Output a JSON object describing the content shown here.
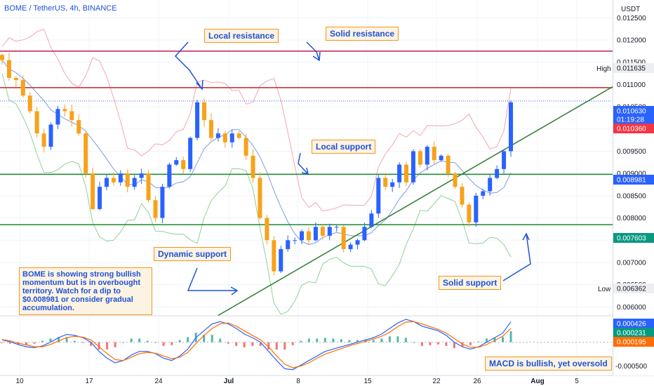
{
  "header": {
    "symbol": "BOME / TetherUS, 4h, BINANCE",
    "currency": "USDT"
  },
  "price_axis": {
    "ticks": [
      "0.012500",
      "0.012000",
      "0.011500",
      "0.011000",
      "0.010500",
      "0.010000",
      "0.009500",
      "0.009000",
      "0.008500",
      "0.008000",
      "0.007500",
      "0.007000",
      "0.006500",
      "0.006000"
    ],
    "tick_values": [
      0.0125,
      0.012,
      0.0115,
      0.011,
      0.0105,
      0.01,
      0.0095,
      0.009,
      0.0085,
      0.008,
      0.0075,
      0.007,
      0.0065,
      0.006
    ],
    "high_label": "High",
    "high_value": "0.011635",
    "low_label": "Low",
    "low_value": "0.006362",
    "last_price": "0.010630",
    "countdown": "01:19:28",
    "red_tag": "0.010360",
    "support_tag": "0.008981",
    "green_tag": "0.007603",
    "colors": {
      "last": "#2962ff",
      "red": "#f23645",
      "green": "#089981"
    }
  },
  "macd_axis": {
    "ticks": [
      "-0.000500"
    ],
    "tags": [
      {
        "value": "0.000426",
        "color": "#2962ff"
      },
      {
        "value": "0.000231",
        "color": "#089981"
      },
      {
        "value": "0.000195",
        "color": "#ff6d00"
      }
    ]
  },
  "time_axis": {
    "labels": [
      "10",
      "17",
      "24",
      "Jul",
      "8",
      "15",
      "22",
      "26",
      "Aug",
      "5"
    ]
  },
  "annotations": {
    "local_resistance": "Local resistance",
    "solid_resistance": "Solid resistance",
    "local_support": "Local support",
    "dynamic_support": "Dynamic support",
    "solid_support": "Solid support",
    "commentary": "BOME is showing strong bullish momentum but is in overbought territory. Watch for a dip to $0.008981 or consider gradual accumulation.",
    "macd_note": "MACD is bullish, yet oversold"
  },
  "chart_data": {
    "type": "candlestick",
    "title": "BOME / TetherUS, 4h, BINANCE",
    "xlabel": "",
    "ylabel": "",
    "ylim": [
      0.0058,
      0.0129
    ],
    "horizontal_levels": [
      {
        "price": 0.01175,
        "color": "#c2185b"
      },
      {
        "price": 0.01093,
        "color": "#c62828"
      },
      {
        "price": 0.008981,
        "color": "#1b8a2b"
      },
      {
        "price": 0.00785,
        "color": "#1b8a2b"
      }
    ],
    "trendline": {
      "from": [
        0,
        0.0058
      ],
      "to": [
        1,
        0.01095
      ],
      "color": "#2e7d32"
    },
    "close_path": [
      0.01155,
      0.01115,
      0.0111,
      0.01075,
      0.0104,
      0.0099,
      0.0096,
      0.0101,
      0.01045,
      0.0104,
      0.0102,
      0.0099,
      0.009,
      0.0082,
      0.0087,
      0.0089,
      0.0088,
      0.009,
      0.0087,
      0.0089,
      0.009,
      0.0084,
      0.008,
      0.0087,
      0.0092,
      0.0093,
      0.0091,
      0.0098,
      0.0106,
      0.0102,
      0.0098,
      0.0099,
      0.0097,
      0.0099,
      0.0098,
      0.0094,
      0.0089,
      0.008,
      0.0075,
      0.0068,
      0.0073,
      0.0075,
      0.0075,
      0.0077,
      0.0075,
      0.0078,
      0.0076,
      0.0078,
      0.0078,
      0.0073,
      0.0074,
      0.0075,
      0.0078,
      0.0081,
      0.0089,
      0.0087,
      0.0088,
      0.0092,
      0.0088,
      0.0095,
      0.0092,
      0.0096,
      0.0093,
      0.0094,
      0.009,
      0.0087,
      0.0083,
      0.0079,
      0.0085,
      0.0086,
      0.0089,
      0.0091,
      0.0095,
      0.0106
    ]
  },
  "macd_data": {
    "macd": [
      5e-05,
      1e-05,
      -5e-05,
      -0.0001,
      -0.00012,
      -8e-05,
      0.0,
      0.0001,
      0.00017,
      0.00015,
      0.0001,
      0.0,
      -0.0002,
      -0.00035,
      -0.00045,
      -0.0004,
      -0.00028,
      -0.0002,
      -0.0002,
      -0.00025,
      -0.00035,
      -0.0004,
      -0.0003,
      -0.00015,
      0.0001,
      0.00025,
      0.0004,
      0.00045,
      0.0004,
      0.0003,
      0.00018,
      0.0001,
      0.0,
      -0.0002,
      -0.0004,
      -0.00058,
      -0.0006,
      -0.0005,
      -0.0004,
      -0.0003,
      -0.0002,
      -0.00015,
      -0.0001,
      -5e-05,
      0.0,
      5e-05,
      0.0001,
      0.00018,
      0.0003,
      0.00042,
      0.0005,
      0.00045,
      0.00035,
      0.0003,
      0.00025,
      0.00015,
      0.0,
      -0.0001,
      -0.00015,
      -0.0001,
      0.0,
      0.0001,
      0.0002,
      0.00045
    ],
    "signal": [
      6e-05,
      3e-05,
      -2e-05,
      -6e-05,
      -0.0001,
      -0.0001,
      -5e-05,
      3e-05,
      0.0001,
      0.00013,
      0.00011,
      5e-05,
      -0.0001,
      -0.00025,
      -0.00038,
      -0.0004,
      -0.00033,
      -0.00025,
      -0.00022,
      -0.00024,
      -0.0003,
      -0.00036,
      -0.00033,
      -0.00022,
      -3e-05,
      0.00015,
      0.0003,
      0.0004,
      0.00042,
      0.00035,
      0.00025,
      0.00015,
      5e-05,
      -0.0001,
      -0.0003,
      -0.00048,
      -0.00056,
      -0.00052,
      -0.00045,
      -0.00035,
      -0.00026,
      -0.0002,
      -0.00014,
      -8e-05,
      -3e-05,
      2e-05,
      7e-05,
      0.00013,
      0.00022,
      0.00034,
      0.00044,
      0.00045,
      0.0004,
      0.00034,
      0.00028,
      0.0002,
      8e-05,
      -4e-05,
      -0.00011,
      -0.00011,
      -5e-05,
      4e-05,
      0.00013,
      0.0003
    ]
  }
}
